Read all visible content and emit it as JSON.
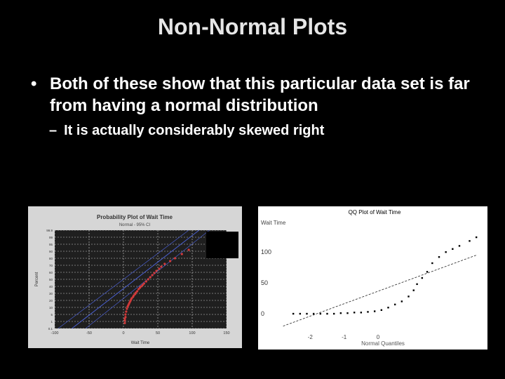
{
  "slide": {
    "title": "Non-Normal Plots",
    "bullet1": "Both of these show that this particular data set is far from having a normal distribution",
    "bullet2": "It is actually considerably skewed right"
  },
  "chart_data": [
    {
      "type": "scatter",
      "title": "Probability Plot of Wait Time",
      "subtitle": "Normal - 95% CI",
      "xlabel": "Wait Time",
      "ylabel": "Percent",
      "xlim": [
        -100,
        150
      ],
      "x_ticks": [
        "-100",
        "-50",
        "0",
        "50",
        "100",
        "150"
      ],
      "y_ticks": [
        "0.1",
        "1",
        "5",
        "10",
        "20",
        "30",
        "40",
        "50",
        "60",
        "70",
        "80",
        "90",
        "95",
        "99",
        "99.9"
      ],
      "y_percent_scale": [
        0.1,
        1,
        5,
        10,
        20,
        30,
        40,
        50,
        60,
        70,
        80,
        90,
        95,
        99,
        99.9
      ],
      "grid": true,
      "background": "#1f1f1f",
      "point_color": "#d23a3a",
      "line_color": "#4a5fd0",
      "points": [
        [
          2,
          0.8
        ],
        [
          2,
          1.5
        ],
        [
          2,
          2.5
        ],
        [
          3,
          3.5
        ],
        [
          3,
          5
        ],
        [
          4,
          7
        ],
        [
          5,
          9
        ],
        [
          6,
          11
        ],
        [
          7,
          13
        ],
        [
          8,
          15
        ],
        [
          9,
          17
        ],
        [
          10,
          19
        ],
        [
          11,
          21
        ],
        [
          12,
          23
        ],
        [
          14,
          25
        ],
        [
          15,
          27
        ],
        [
          17,
          29
        ],
        [
          18,
          31
        ],
        [
          20,
          33
        ],
        [
          22,
          36
        ],
        [
          24,
          38
        ],
        [
          26,
          40
        ],
        [
          28,
          42
        ],
        [
          30,
          44
        ],
        [
          33,
          47
        ],
        [
          36,
          50
        ],
        [
          39,
          53
        ],
        [
          42,
          56
        ],
        [
          45,
          59
        ],
        [
          48,
          62
        ],
        [
          52,
          65
        ],
        [
          55,
          68
        ],
        [
          60,
          72
        ],
        [
          68,
          76
        ],
        [
          75,
          80
        ],
        [
          85,
          86
        ],
        [
          95,
          91
        ]
      ]
    },
    {
      "type": "scatter",
      "title": "QQ Plot of Wait Time",
      "ylabel": "Wait Time",
      "xlabel": "Normal Quantiles",
      "xlim": [
        -3,
        3
      ],
      "ylim": [
        -25,
        140
      ],
      "y_ticks": [
        "100",
        "50",
        "0"
      ],
      "x_ticks": [
        "-2",
        "-1",
        "0"
      ],
      "points": [
        [
          -2.5,
          0
        ],
        [
          -2.3,
          0
        ],
        [
          -2.1,
          0
        ],
        [
          -1.9,
          0
        ],
        [
          -1.7,
          0
        ],
        [
          -1.5,
          0
        ],
        [
          -1.3,
          0
        ],
        [
          -1.1,
          1
        ],
        [
          -0.9,
          1
        ],
        [
          -0.7,
          2
        ],
        [
          -0.5,
          2
        ],
        [
          -0.3,
          3
        ],
        [
          -0.1,
          4
        ],
        [
          0.1,
          6
        ],
        [
          0.3,
          10
        ],
        [
          0.5,
          15
        ],
        [
          0.7,
          20
        ],
        [
          0.9,
          28
        ],
        [
          1.05,
          38
        ],
        [
          1.15,
          48
        ],
        [
          1.3,
          58
        ],
        [
          1.45,
          68
        ],
        [
          1.6,
          82
        ],
        [
          1.8,
          92
        ],
        [
          2.0,
          100
        ],
        [
          2.2,
          105
        ],
        [
          2.4,
          110
        ],
        [
          2.7,
          118
        ],
        [
          2.9,
          124
        ]
      ]
    }
  ]
}
